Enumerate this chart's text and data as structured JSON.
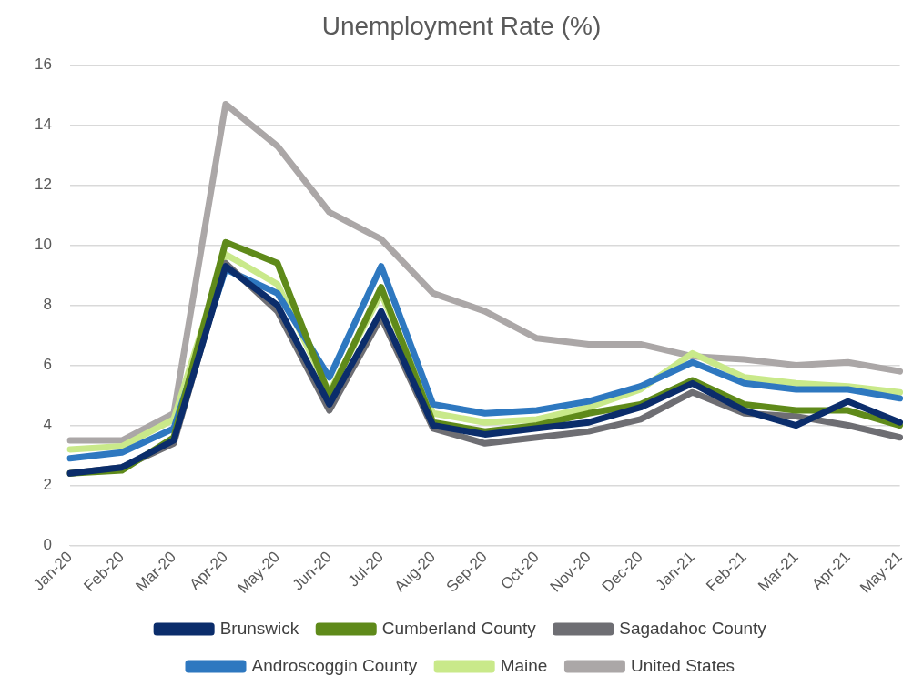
{
  "chart_data": {
    "type": "line",
    "title": "Unemployment Rate (%)",
    "categories": [
      "Jan-20",
      "Feb-20",
      "Mar-20",
      "Apr-20",
      "May-20",
      "Jun-20",
      "Jul-20",
      "Aug-20",
      "Sep-20",
      "Oct-20",
      "Nov-20",
      "Dec-20",
      "Jan-21",
      "Feb-21",
      "Mar-21",
      "Apr-21",
      "May-21"
    ],
    "series": [
      {
        "name": "Brunswick",
        "color": "#0b2d6b",
        "values": [
          2.4,
          2.6,
          3.5,
          9.3,
          8.0,
          4.7,
          7.8,
          4.0,
          3.7,
          3.9,
          4.1,
          4.6,
          5.4,
          4.5,
          4.0,
          4.8,
          4.1
        ]
      },
      {
        "name": "Cumberland County",
        "color": "#5f8a1a",
        "values": [
          2.4,
          2.5,
          3.6,
          10.1,
          9.4,
          5.0,
          8.6,
          4.1,
          3.8,
          4.0,
          4.4,
          4.7,
          5.5,
          4.7,
          4.5,
          4.5,
          4.0
        ]
      },
      {
        "name": "Sagadahoc County",
        "color": "#6e6e73",
        "values": [
          2.4,
          2.6,
          3.4,
          9.4,
          7.8,
          4.5,
          7.6,
          3.9,
          3.4,
          3.6,
          3.8,
          4.2,
          5.1,
          4.4,
          4.3,
          4.0,
          3.6
        ]
      },
      {
        "name": "Androscoggin County",
        "color": "#2e78c0",
        "values": [
          2.9,
          3.1,
          3.9,
          9.2,
          8.4,
          5.6,
          9.3,
          4.7,
          4.4,
          4.5,
          4.8,
          5.3,
          6.1,
          5.4,
          5.2,
          5.2,
          4.9
        ]
      },
      {
        "name": "Maine",
        "color": "#c9e98a",
        "values": [
          3.2,
          3.3,
          4.2,
          9.7,
          8.7,
          5.1,
          8.4,
          4.4,
          4.1,
          4.2,
          4.6,
          5.2,
          6.4,
          5.6,
          5.4,
          5.3,
          5.1
        ]
      },
      {
        "name": "United States",
        "color": "#aba7a7",
        "values": [
          3.5,
          3.5,
          4.4,
          14.7,
          13.3,
          11.1,
          10.2,
          8.4,
          7.8,
          6.9,
          6.7,
          6.7,
          6.3,
          6.2,
          6.0,
          6.1,
          5.8
        ]
      }
    ],
    "ylim": [
      0,
      16
    ],
    "yticks": [
      0,
      2,
      4,
      6,
      8,
      10,
      12,
      14,
      16
    ],
    "grid": "y",
    "legend": "bottom",
    "marker": "none",
    "line_style": "solid"
  }
}
